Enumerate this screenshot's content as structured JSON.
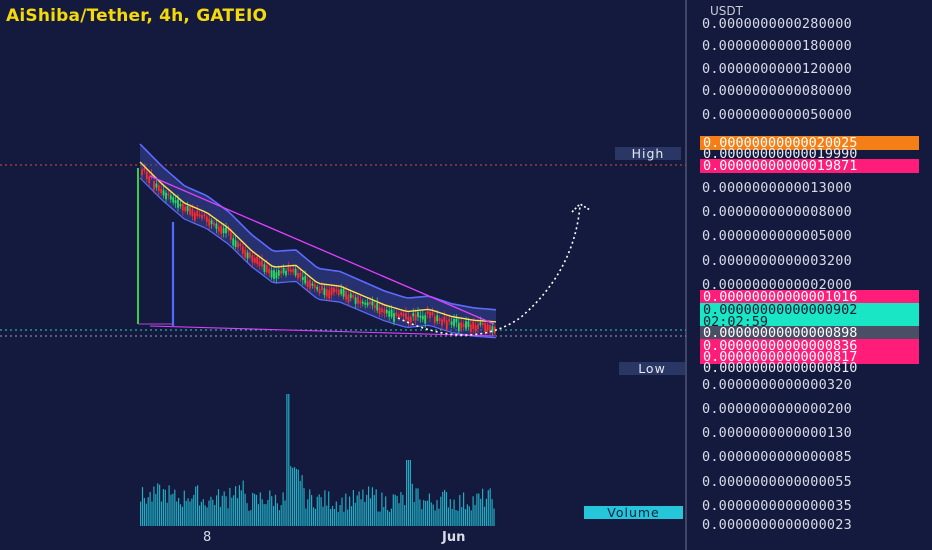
{
  "header": {
    "title": "AiShiba/Tether, 4h, GATEIO"
  },
  "axis": {
    "unit": "USDT",
    "price_ticks": [
      "0.0000000000280000",
      "0.0000000000180000",
      "0.0000000000120000",
      "0.0000000000080000",
      "0.0000000000050000",
      "0.0000000000013000",
      "0.0000000000008000",
      "0.0000000000005000",
      "0.0000000000003200",
      "0.0000000000002000",
      "0.0000000000000320",
      "0.0000000000000200",
      "0.0000000000000130",
      "0.0000000000000085",
      "0.0000000000000055",
      "0.0000000000000035",
      "0.0000000000000023"
    ],
    "x_ticks": [
      "8",
      "Jun"
    ]
  },
  "badges": {
    "orange": {
      "value": "0.00000000000020025",
      "color": "#f57f17"
    },
    "high": {
      "label": "High",
      "value": "0.00000000000019990"
    },
    "pink_top": {
      "value": "0.00000000000019871",
      "color": "#ff1d79"
    },
    "pink_mid": {
      "value": "0.00000000000001016",
      "color": "#ff1d79"
    },
    "current": {
      "value": "0.00000000000000902",
      "countdown": "02:02:59",
      "color": "#19e6c4"
    },
    "grey": {
      "value": "0.00000000000000898",
      "color": "#4a4f66"
    },
    "pink_836": {
      "value": "0.00000000000000836",
      "color": "#ff1d79"
    },
    "pink_817": {
      "value": "0.00000000000000817",
      "color": "#ff1d79"
    },
    "low": {
      "label": "Low",
      "value": "0.00000000000000810"
    }
  },
  "volume": {
    "label": "Volume",
    "color": "#26c6da"
  },
  "colors": {
    "background": "#131a3e",
    "up": "#26e05a",
    "down": "#ff2a2a",
    "trendline": "#e040fb",
    "channel": "#5c6bff",
    "ma": "#ffe14d"
  },
  "chart_data": {
    "type": "candlestick",
    "title": "AiShiba/Tether, 4h, GATEIO",
    "ylabel": "USDT",
    "y_scale": "log",
    "high": 1.999e-13,
    "low": 8.1e-15,
    "last": 9.02e-15,
    "x_ticks": [
      "8",
      "Jun"
    ],
    "price_path": [
      1.999e-13,
      1.3e-13,
      9e-14,
      7.5e-14,
      5.5e-14,
      3.6e-14,
      2.6e-14,
      2.7e-14,
      1.9e-14,
      1.8e-14,
      1.5e-14,
      1.25e-14,
      1.1e-14,
      1.15e-14,
      1e-14,
      9.3e-15,
      9.02e-15
    ],
    "volume_relative": [
      0.35,
      0.45,
      0.3,
      0.4,
      0.25,
      0.3,
      0.55,
      0.2,
      0.3,
      0.25,
      1.0,
      0.3,
      0.25,
      0.2,
      0.25,
      0.35,
      0.2,
      0.25,
      0.45,
      0.2,
      0.3,
      0.2,
      0.25,
      0.3
    ],
    "annotations": [
      "descending wedge trendlines",
      "projected breakout arc (dotted)"
    ]
  }
}
